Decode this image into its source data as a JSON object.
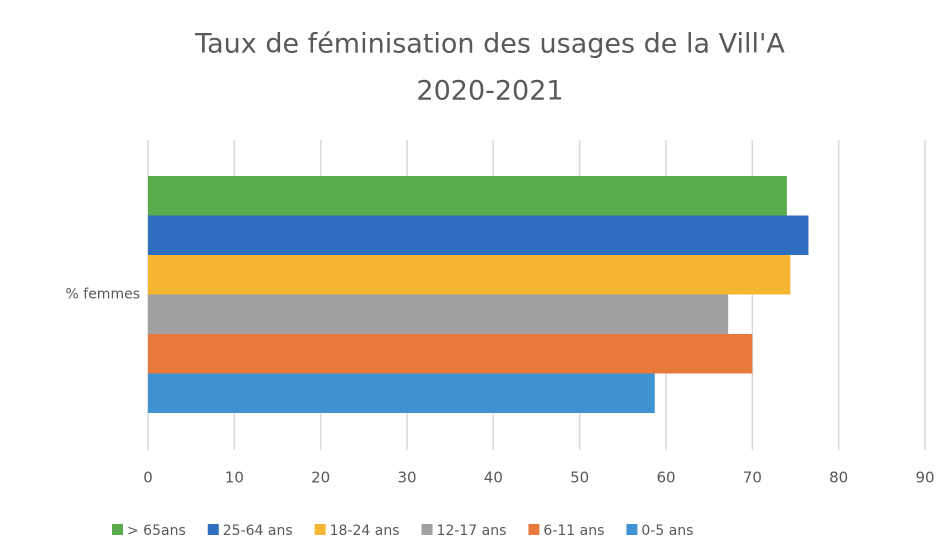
{
  "chart_data": {
    "type": "hbar",
    "title": "Taux de féminisation des usages de la Vill'A",
    "subtitle": "2020-2021",
    "categories": [
      "% femmes"
    ],
    "series": [
      {
        "name": "> 65ans",
        "color": "#5aab4b",
        "values": [
          74
        ]
      },
      {
        "name": "25-64 ans",
        "color": "#2e6fbf",
        "values": [
          76.5
        ]
      },
      {
        "name": "18-24 ans",
        "color": "#f5b731",
        "values": [
          74.4
        ]
      },
      {
        "name": "12-17 ans",
        "color": "#a0a0a0",
        "values": [
          67.2
        ]
      },
      {
        "name": "6-11 ans",
        "color": "#e8793c",
        "values": [
          70
        ]
      },
      {
        "name": "0-5 ans",
        "color": "#3f93d2",
        "values": [
          58.7
        ]
      }
    ],
    "xlim": [
      0,
      90
    ],
    "xticks": [
      0,
      10,
      20,
      30,
      40,
      50,
      60,
      70,
      80,
      90
    ],
    "grid": true,
    "legend": "bottom"
  }
}
